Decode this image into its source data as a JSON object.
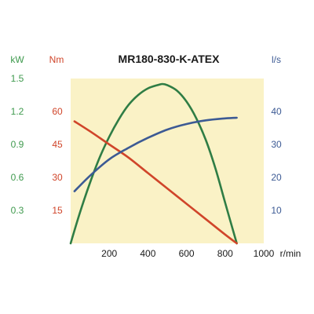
{
  "chart_data": {
    "type": "line",
    "title": "MR180-830-K-ATEX",
    "xlabel": "r/min",
    "xlim": [
      0,
      1000
    ],
    "x_ticks": [
      "200",
      "400",
      "600",
      "800",
      "1000"
    ],
    "x_tick_values": [
      200,
      400,
      600,
      800,
      1000
    ],
    "grid": false,
    "background": "#faf2c6",
    "axes": [
      {
        "id": "power",
        "label": "kW",
        "color": "#3f9a4e",
        "side": "left",
        "range": [
          0,
          1.5
        ],
        "ticks": [
          "0.3",
          "0.6",
          "0.9",
          "1.2",
          "1.5"
        ],
        "tick_values": [
          0.3,
          0.6,
          0.9,
          1.2,
          1.5
        ]
      },
      {
        "id": "torque",
        "label": "Nm",
        "color": "#d0452a",
        "side": "left",
        "range": [
          0,
          75
        ],
        "ticks": [
          "15",
          "30",
          "45",
          "60"
        ],
        "tick_values": [
          15,
          30,
          45,
          60
        ]
      },
      {
        "id": "flow",
        "label": "l/s",
        "color": "#3c5a94",
        "side": "right",
        "range": [
          0,
          50
        ],
        "ticks": [
          "10",
          "20",
          "30",
          "40"
        ],
        "tick_values": [
          10,
          20,
          30,
          40
        ]
      }
    ],
    "series": [
      {
        "axis": "power",
        "color": "#2f7d45",
        "x": [
          0,
          50,
          100,
          150,
          200,
          250,
          300,
          350,
          400,
          450,
          475,
          500,
          550,
          600,
          650,
          700,
          750,
          800,
          860
        ],
        "y": [
          0,
          0.29,
          0.55,
          0.78,
          0.97,
          1.13,
          1.26,
          1.35,
          1.41,
          1.44,
          1.45,
          1.44,
          1.39,
          1.29,
          1.14,
          0.94,
          0.68,
          0.37,
          0
        ]
      },
      {
        "axis": "torque",
        "color": "#d0452a",
        "x": [
          20,
          100,
          200,
          300,
          400,
          500,
          600,
          700,
          800,
          860
        ],
        "y": [
          55.5,
          51,
          45,
          39,
          32,
          25,
          18,
          11,
          4,
          0
        ]
      },
      {
        "axis": "flow",
        "color": "#3c5a94",
        "x": [
          20,
          100,
          200,
          300,
          400,
          500,
          600,
          700,
          800,
          860
        ],
        "y": [
          15.8,
          20.5,
          25.5,
          29,
          32,
          34.5,
          36.2,
          37.3,
          37.9,
          38.1
        ]
      }
    ]
  }
}
